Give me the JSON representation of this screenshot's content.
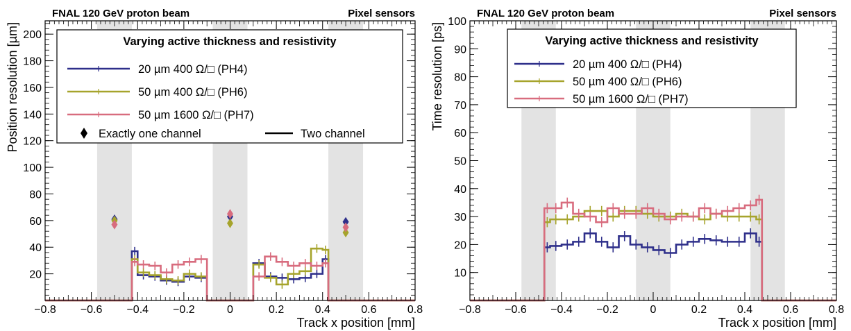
{
  "chart_data": [
    {
      "type": "line",
      "title_left": "FNAL 120 GeV proton beam",
      "title_right": "Pixel sensors",
      "xlabel": "Track x position [mm]",
      "ylabel": "Position resolution [µm]",
      "xlim": [
        -0.8,
        0.8
      ],
      "ylim": [
        0,
        210
      ],
      "xticks": [
        "−0.8",
        "−0.6",
        "−0.4",
        "−0.2",
        "0",
        "0.2",
        "0.4",
        "0.6",
        "0.8"
      ],
      "yticks": [
        "20",
        "40",
        "60",
        "80",
        "100",
        "120",
        "140",
        "160",
        "180",
        "200"
      ],
      "shaded_regions": [
        [
          -0.575,
          -0.425
        ],
        [
          -0.075,
          0.075
        ],
        [
          0.425,
          0.575
        ]
      ],
      "legend": {
        "title": "Varying active thickness and resistivity",
        "entries": [
          "20 µm 400 Ω/□  (PH4)",
          "50 µm 400 Ω/□  (PH6)",
          "50 µm 1600 Ω/□  (PH7)"
        ],
        "marker_one": "Exactly one channel",
        "marker_two": "Two channel",
        "placement": "top"
      },
      "bin_edges": [
        -0.8,
        -0.75,
        -0.7,
        -0.65,
        -0.6,
        -0.55,
        -0.5,
        -0.45,
        -0.425,
        -0.4,
        -0.35,
        -0.3,
        -0.25,
        -0.2,
        -0.15,
        -0.1,
        -0.075,
        -0.05,
        0,
        0.05,
        0.075,
        0.1,
        0.15,
        0.2,
        0.25,
        0.3,
        0.35,
        0.4,
        0.425,
        0.45,
        0.5,
        0.55,
        0.6,
        0.65,
        0.7,
        0.75,
        0.8
      ],
      "series": [
        {
          "name": "PH4",
          "color": "#2e2f8a",
          "values": [
            0,
            0,
            0,
            0,
            0,
            0,
            0,
            0,
            37,
            19,
            18,
            15,
            14,
            18,
            17,
            0,
            0,
            0,
            0,
            0,
            0,
            28,
            18,
            17,
            16,
            17,
            20,
            31,
            0,
            0,
            0,
            0,
            0,
            0,
            0,
            0
          ]
        },
        {
          "name": "PH6",
          "color": "#a6a42c",
          "values": [
            0,
            0,
            0,
            0,
            0,
            0,
            0,
            0,
            31,
            21,
            19,
            16,
            15,
            20,
            18,
            0,
            0,
            0,
            0,
            0,
            0,
            27,
            17,
            12,
            20,
            22,
            39,
            38,
            0,
            0,
            0,
            0,
            0,
            0,
            0,
            0
          ]
        },
        {
          "name": "PH7",
          "color": "#d86c7e",
          "values": [
            0,
            0,
            0,
            0,
            0,
            0,
            0,
            0,
            29,
            27,
            26,
            21,
            27,
            29,
            31,
            0,
            0,
            0,
            0,
            0,
            0,
            18,
            33,
            29,
            26,
            28,
            26,
            28,
            0,
            0,
            0,
            0,
            0,
            0,
            0,
            0
          ]
        }
      ],
      "single_channel_points": [
        {
          "series": "PH4",
          "points": [
            [
              -0.5,
              61
            ],
            [
              0,
              63
            ],
            [
              0.5,
              59
            ]
          ]
        },
        {
          "series": "PH6",
          "points": [
            [
              -0.5,
              60
            ],
            [
              0,
              58
            ],
            [
              0.5,
              51
            ]
          ]
        },
        {
          "series": "PH7",
          "points": [
            [
              -0.5,
              57
            ],
            [
              0,
              65
            ],
            [
              0.5,
              55
            ]
          ]
        }
      ]
    },
    {
      "type": "line",
      "title_left": "FNAL 120 GeV proton beam",
      "title_right": "Pixel sensors",
      "xlabel": "Track x position [mm]",
      "ylabel": "Time resolution [ps]",
      "xlim": [
        -0.8,
        0.8
      ],
      "ylim": [
        0,
        100
      ],
      "xticks": [
        "−0.8",
        "−0.6",
        "−0.4",
        "−0.2",
        "0",
        "0.2",
        "0.4",
        "0.6",
        "0.8"
      ],
      "yticks": [
        "10",
        "20",
        "30",
        "40",
        "50",
        "60",
        "70",
        "80",
        "90",
        "100"
      ],
      "shaded_regions": [
        [
          -0.575,
          -0.425
        ],
        [
          -0.075,
          0.075
        ],
        [
          0.425,
          0.575
        ]
      ],
      "legend": {
        "title": "Varying active thickness and resistivity",
        "entries": [
          "20 µm 400 Ω/□  (PH4)",
          "50 µm 400 Ω/□  (PH6)",
          "50 µm 1600 Ω/□  (PH7)"
        ],
        "placement": "top"
      },
      "bin_edges": [
        -0.8,
        -0.475,
        -0.45,
        -0.4,
        -0.35,
        -0.3,
        -0.25,
        -0.2,
        -0.15,
        -0.1,
        -0.05,
        0,
        0.05,
        0.1,
        0.15,
        0.2,
        0.25,
        0.3,
        0.35,
        0.4,
        0.45,
        0.475,
        0.8
      ],
      "series": [
        {
          "name": "PH4",
          "color": "#2e2f8a",
          "values": [
            0,
            19,
            19.5,
            20,
            21,
            24,
            21,
            19,
            23,
            20,
            19,
            18,
            17,
            20,
            21,
            22,
            21.5,
            21,
            21,
            24,
            21,
            0
          ]
        },
        {
          "name": "PH6",
          "color": "#a6a42c",
          "values": [
            0,
            28,
            29,
            29,
            30,
            32,
            32,
            30,
            32,
            32,
            31,
            30,
            30,
            31,
            30,
            29,
            31,
            30,
            30,
            30,
            29,
            0
          ]
        },
        {
          "name": "PH7",
          "color": "#d86c7e",
          "values": [
            0,
            33,
            33,
            35,
            31,
            30,
            28,
            33,
            31,
            31,
            33,
            31,
            29,
            30,
            30,
            33,
            31,
            32,
            33,
            34,
            36,
            0
          ]
        }
      ]
    }
  ]
}
